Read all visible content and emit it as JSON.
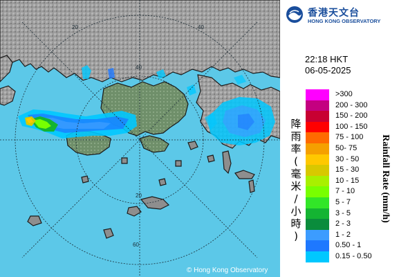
{
  "map": {
    "range_ring_labels": [
      "20",
      "40",
      "20",
      "40",
      "60"
    ],
    "copyright": "© Hong Kong Observatory",
    "colors": {
      "sea": "#5cc8e8",
      "land": "#9a9a9a",
      "coast": "#1a1a1a",
      "range_ring": "#1a2a33"
    }
  },
  "header": {
    "logo_zh": "香港天文台",
    "logo_en": "HONG KONG OBSERVATORY",
    "logo_icon": "hko-logo-icon"
  },
  "timestamp": {
    "time": "22:18 HKT",
    "date": "06-05-2025"
  },
  "legend": {
    "title_zh": [
      "降",
      "雨",
      "率",
      "(",
      "毫",
      "米",
      "/",
      "小",
      "時",
      ")"
    ],
    "title_en": "Rainfall Rate (mm/h)",
    "items": [
      {
        "label": ">300",
        "color": "#ff00ff"
      },
      {
        "label": "200 - 300",
        "color": "#c40080"
      },
      {
        "label": "150 - 200",
        "color": "#c80032"
      },
      {
        "label": "100 - 150",
        "color": "#ff0000"
      },
      {
        "label": "75 - 100",
        "color": "#ff6a00"
      },
      {
        "label": "50- 75",
        "color": "#f5a000"
      },
      {
        "label": "30 - 50",
        "color": "#ffc800"
      },
      {
        "label": "15 - 30",
        "color": "#d8c800"
      },
      {
        "label": "10 - 15",
        "color": "#a8f000"
      },
      {
        "label": "7 - 10",
        "color": "#78ff00"
      },
      {
        "label": "5 - 7",
        "color": "#32e628"
      },
      {
        "label": "3 - 5",
        "color": "#14b432"
      },
      {
        "label": "2 - 3",
        "color": "#0a8c3c"
      },
      {
        "label": "1 - 2",
        "color": "#3c9cff"
      },
      {
        "label": "0.50 - 1",
        "color": "#1e78ff"
      },
      {
        "label": "0.15 - 0.50",
        "color": "#00c8ff"
      }
    ]
  }
}
